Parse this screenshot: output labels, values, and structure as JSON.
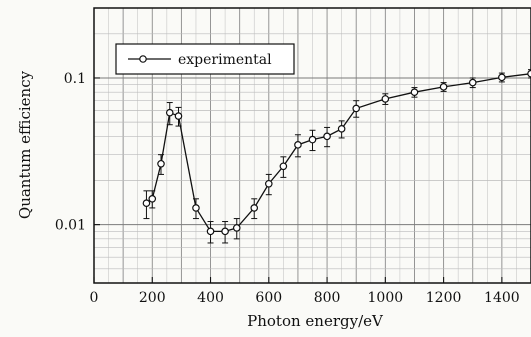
{
  "chart_data": {
    "type": "line",
    "xlabel": "Photon energy/eV",
    "ylabel": "Quantum efficiency",
    "xlim": [
      0,
      1500
    ],
    "ylim": [
      0.004,
      0.3
    ],
    "y_scale": "log",
    "grid": true,
    "x_ticks": [
      0,
      200,
      400,
      600,
      800,
      1000,
      1200,
      1400
    ],
    "y_ticks": [
      0.01,
      0.1
    ],
    "legend": {
      "entries": [
        "experimental"
      ],
      "placement": "top-left"
    },
    "series": [
      {
        "name": "experimental",
        "points": [
          {
            "x": 180,
            "y": 0.014,
            "error": 0.003
          },
          {
            "x": 200,
            "y": 0.015,
            "error": 0.002
          },
          {
            "x": 230,
            "y": 0.026,
            "error": 0.004
          },
          {
            "x": 260,
            "y": 0.058,
            "error": 0.01
          },
          {
            "x": 290,
            "y": 0.055,
            "error": 0.008
          },
          {
            "x": 350,
            "y": 0.013,
            "error": 0.002
          },
          {
            "x": 400,
            "y": 0.009,
            "error": 0.0015
          },
          {
            "x": 450,
            "y": 0.009,
            "error": 0.0015
          },
          {
            "x": 490,
            "y": 0.0095,
            "error": 0.0015
          },
          {
            "x": 550,
            "y": 0.013,
            "error": 0.002
          },
          {
            "x": 600,
            "y": 0.019,
            "error": 0.003
          },
          {
            "x": 650,
            "y": 0.025,
            "error": 0.004
          },
          {
            "x": 700,
            "y": 0.035,
            "error": 0.006
          },
          {
            "x": 750,
            "y": 0.038,
            "error": 0.006
          },
          {
            "x": 800,
            "y": 0.04,
            "error": 0.006
          },
          {
            "x": 850,
            "y": 0.045,
            "error": 0.006
          },
          {
            "x": 900,
            "y": 0.062,
            "error": 0.008
          },
          {
            "x": 1000,
            "y": 0.072,
            "error": 0.006
          },
          {
            "x": 1100,
            "y": 0.08,
            "error": 0.006
          },
          {
            "x": 1200,
            "y": 0.087,
            "error": 0.006
          },
          {
            "x": 1300,
            "y": 0.093,
            "error": 0.007
          },
          {
            "x": 1400,
            "y": 0.101,
            "error": 0.007
          },
          {
            "x": 1500,
            "y": 0.107,
            "error": 0.007
          }
        ]
      }
    ]
  }
}
